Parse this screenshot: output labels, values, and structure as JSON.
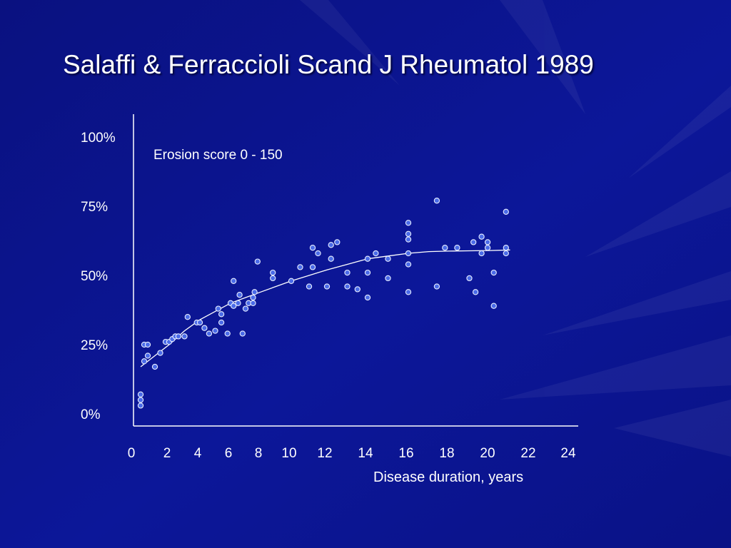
{
  "slide": {
    "title": "Salaffi & Ferraccioli Scand J Rheumatol 1989"
  },
  "colors": {
    "background": "#0a1290",
    "axis": "#ffffff",
    "point_fill": "#4a6be8",
    "point_stroke": "#e8eeff",
    "curve": "#ffffff"
  },
  "chart_data": {
    "type": "scatter",
    "title": "",
    "annotation": "Erosion score 0 - 150",
    "xlabel": "Disease duration, years",
    "ylabel": "",
    "x_ticks": [
      0,
      2,
      4,
      6,
      8,
      10,
      12,
      14,
      16,
      18,
      20,
      22,
      24
    ],
    "y_ticks": [
      "0%",
      "25%",
      "50%",
      "75%",
      "100%"
    ],
    "xlim": [
      0,
      24
    ],
    "ylim": [
      0,
      105
    ],
    "grid": false,
    "legend": "none",
    "series": [
      {
        "points": [
          [
            0.4,
            3
          ],
          [
            0.4,
            5
          ],
          [
            0.4,
            7
          ],
          [
            0.6,
            19
          ],
          [
            0.6,
            25
          ],
          [
            0.8,
            25
          ],
          [
            0.8,
            21
          ],
          [
            1.2,
            17
          ],
          [
            1.5,
            22
          ],
          [
            1.8,
            26
          ],
          [
            2.0,
            26
          ],
          [
            2.2,
            27
          ],
          [
            2.4,
            28
          ],
          [
            2.6,
            28
          ],
          [
            3.0,
            28
          ],
          [
            3.2,
            35
          ],
          [
            3.8,
            33
          ],
          [
            4.0,
            33
          ],
          [
            4.3,
            31
          ],
          [
            4.6,
            29
          ],
          [
            5.0,
            30
          ],
          [
            5.2,
            38
          ],
          [
            5.4,
            33
          ],
          [
            5.4,
            36
          ],
          [
            5.8,
            29
          ],
          [
            6.0,
            40
          ],
          [
            6.2,
            39
          ],
          [
            6.2,
            48
          ],
          [
            6.5,
            40
          ],
          [
            6.6,
            43
          ],
          [
            6.8,
            29
          ],
          [
            7.0,
            38
          ],
          [
            7.2,
            40
          ],
          [
            7.5,
            40
          ],
          [
            7.5,
            42
          ],
          [
            7.6,
            44
          ],
          [
            7.8,
            55
          ],
          [
            8.8,
            51
          ],
          [
            8.8,
            49
          ],
          [
            10.0,
            48
          ],
          [
            10.5,
            53
          ],
          [
            11.0,
            46
          ],
          [
            11.2,
            53
          ],
          [
            11.2,
            60
          ],
          [
            11.5,
            58
          ],
          [
            12.0,
            46
          ],
          [
            12.2,
            56
          ],
          [
            12.2,
            61
          ],
          [
            12.5,
            62
          ],
          [
            13.0,
            46
          ],
          [
            13.0,
            51
          ],
          [
            13.5,
            45
          ],
          [
            14.0,
            51
          ],
          [
            14.0,
            56
          ],
          [
            14.0,
            42
          ],
          [
            14.4,
            58
          ],
          [
            15.0,
            49
          ],
          [
            15.0,
            56
          ],
          [
            16.0,
            54
          ],
          [
            16.0,
            44
          ],
          [
            16.0,
            58
          ],
          [
            16.0,
            63
          ],
          [
            16.0,
            65
          ],
          [
            16.0,
            69
          ],
          [
            17.4,
            77
          ],
          [
            17.4,
            46
          ],
          [
            17.8,
            60
          ],
          [
            18.4,
            60
          ],
          [
            19.0,
            49
          ],
          [
            19.2,
            62
          ],
          [
            19.3,
            44
          ],
          [
            19.6,
            58
          ],
          [
            19.6,
            64
          ],
          [
            19.9,
            60
          ],
          [
            19.9,
            62
          ],
          [
            20.2,
            39
          ],
          [
            20.2,
            51
          ],
          [
            20.8,
            58
          ],
          [
            20.8,
            60
          ],
          [
            20.8,
            73
          ]
        ]
      }
    ],
    "trend_line": [
      [
        0.4,
        17
      ],
      [
        1.0,
        20
      ],
      [
        2.0,
        25
      ],
      [
        3.0,
        30
      ],
      [
        4.0,
        34
      ],
      [
        5.0,
        37
      ],
      [
        6.0,
        40
      ],
      [
        7.0,
        42
      ],
      [
        8.0,
        44
      ],
      [
        9.0,
        46
      ],
      [
        10.0,
        48
      ],
      [
        11.0,
        50
      ],
      [
        12.0,
        52
      ],
      [
        13.0,
        54
      ],
      [
        14.0,
        56
      ],
      [
        15.0,
        57
      ],
      [
        16.0,
        58
      ],
      [
        17.0,
        58.6
      ],
      [
        18.0,
        58.8
      ],
      [
        19.0,
        58.9
      ],
      [
        20.0,
        59
      ],
      [
        21.0,
        59.2
      ]
    ]
  }
}
